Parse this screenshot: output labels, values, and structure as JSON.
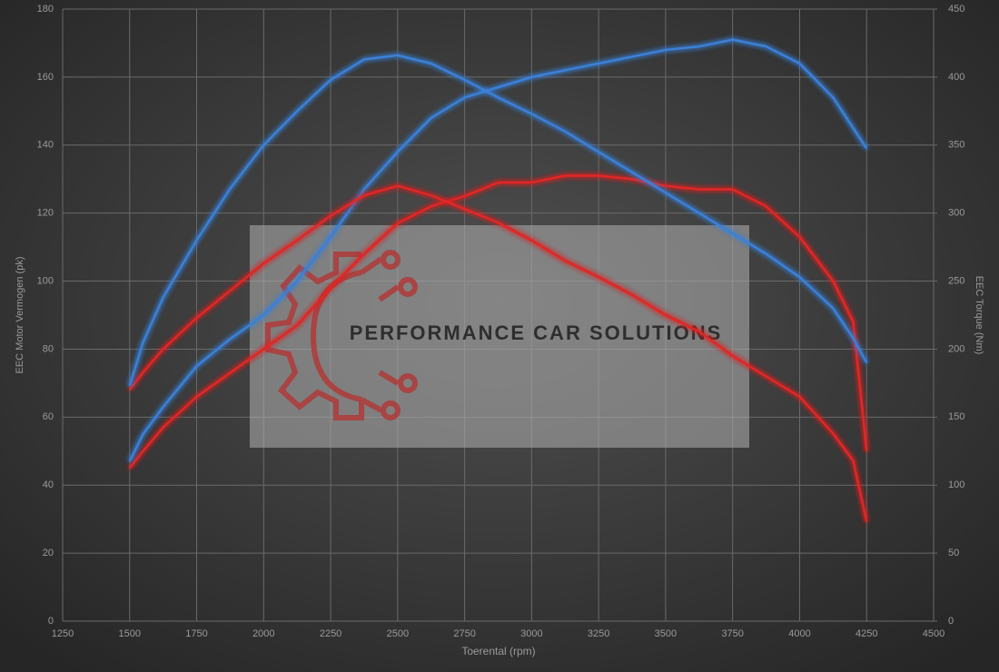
{
  "chart_data": {
    "type": "line",
    "xlabel": "Toerental (rpm)",
    "ylabel": "EEC Motor Vermogen (pk)",
    "y2label": "EEC Torque (Nm)",
    "watermark": "PERFORMANCE CAR SOLUTIONS",
    "x": [
      1500,
      1550,
      1625,
      1750,
      1875,
      2000,
      2125,
      2250,
      2375,
      2500,
      2625,
      2750,
      2875,
      3000,
      3125,
      3250,
      3375,
      3500,
      3625,
      3750,
      3875,
      4000,
      4125,
      4200,
      4250
    ],
    "xlim": [
      1250,
      4500
    ],
    "xticks": [
      1250,
      1500,
      1750,
      2000,
      2250,
      2500,
      2750,
      3000,
      3250,
      3500,
      3750,
      4000,
      4250,
      4500
    ],
    "ylim": [
      0,
      180
    ],
    "yticks": [
      0,
      20,
      40,
      60,
      80,
      100,
      120,
      140,
      160,
      180
    ],
    "y2lim": [
      0,
      450
    ],
    "y2ticks": [
      0,
      50,
      100,
      150,
      200,
      250,
      300,
      350,
      400,
      450
    ],
    "grid": true,
    "series": [
      {
        "color": "#e02828",
        "values": [
          45,
          50,
          57,
          66,
          73,
          80,
          87,
          98,
          108,
          117,
          122,
          125,
          129,
          129,
          131,
          131,
          130,
          128,
          127,
          127,
          122,
          113,
          100,
          88,
          50
        ]
      },
      {
        "color": "#3a80d8",
        "values": [
          47,
          55,
          63,
          75,
          83,
          90,
          100,
          113,
          127,
          138,
          148,
          154,
          157,
          160,
          162,
          164,
          166,
          168,
          169,
          171,
          169,
          164,
          154,
          145,
          139
        ]
      },
      {
        "color": "#e02828",
        "axis": "y2",
        "values": [
          170,
          183,
          200,
          223,
          243,
          263,
          280,
          298,
          313,
          320,
          313,
          303,
          293,
          280,
          265,
          253,
          240,
          225,
          213,
          195,
          180,
          165,
          138,
          118,
          73
        ]
      },
      {
        "color": "#3a80d8",
        "axis": "y2",
        "values": [
          173,
          205,
          238,
          280,
          318,
          350,
          375,
          398,
          413,
          416,
          410,
          398,
          385,
          373,
          360,
          345,
          330,
          315,
          300,
          285,
          270,
          253,
          230,
          208,
          190
        ]
      }
    ]
  }
}
